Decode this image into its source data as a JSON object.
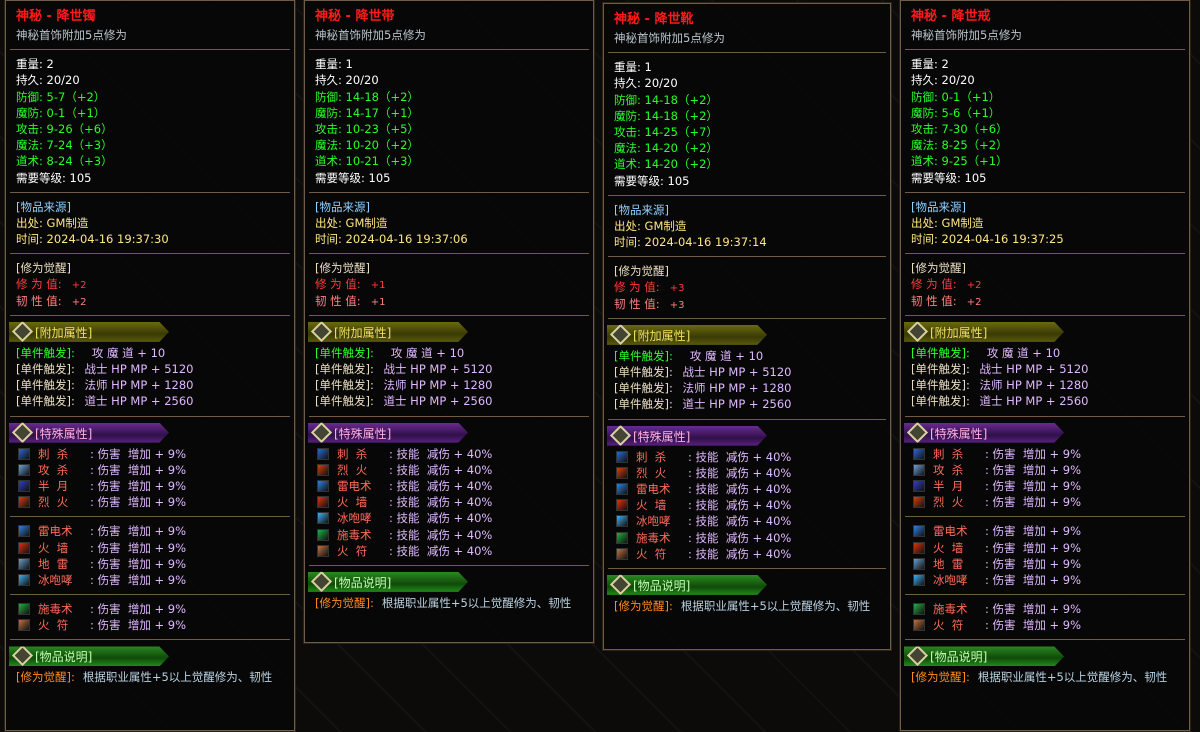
{
  "labels": {
    "weight": "重量",
    "durability": "持久",
    "defense": "防御",
    "mdefense": "魔防",
    "attack": "攻击",
    "magic": "魔法",
    "taoism": "道术",
    "level": "需要等级",
    "source_header": "[物品来源]",
    "origin": "出处",
    "time": "时间",
    "awaken_header": "[修为觉醒]",
    "cultivation": "修 为 值:",
    "toughness": "韧 性 值:",
    "extra_header": "[附加属性]",
    "special_header": "[特殊属性]",
    "desc_header": "[物品说明]",
    "desc_key": "[修为觉醒]:",
    "desc_text": "根据职业属性+5以上觉醒修为、韧性"
  },
  "triggers": [
    {
      "key": "[单件触发]:",
      "val": "   攻 魔 道 + 10",
      "highlight": true
    },
    {
      "key": "[单件触发]:",
      "val": " 战士 HP MP + 5120"
    },
    {
      "key": "[单件触发]:",
      "val": " 法师 HP MP + 1280"
    },
    {
      "key": "[单件触发]:",
      "val": " 道士 HP MP + 2560"
    }
  ],
  "skill_colors": {
    "刺  杀": "#2a6ad0",
    "攻  杀": "#6aa0e0",
    "半  月": "#3040c0",
    "烈  火": "#d04010",
    "雷电术": "#3080e0",
    "火  墙": "#e03010",
    "地  雷": "#60a0d0",
    "冰咆哮": "#40b0f0",
    "施毒术": "#20b040",
    "火  符": "#c07040"
  },
  "panels": [
    {
      "title": "神秘 - 降世镯",
      "subtitle": "神秘首饰附加5点修为",
      "weight": "2",
      "durability": "20/20",
      "defense": "5-7（+2）",
      "mdefense": "0-1（+1）",
      "attack": "9-26（+6）",
      "magic": "7-24（+3）",
      "taoism": "8-24（+3）",
      "level": "105",
      "origin": "GM制造",
      "time": "2024-04-16 19:37:30",
      "cultivation": "+2",
      "toughness": "+2",
      "skills": [
        [
          {
            "n": "刺  杀",
            "e": "伤害  增加 + 9%"
          },
          {
            "n": "攻  杀",
            "e": "伤害  增加 + 9%"
          },
          {
            "n": "半  月",
            "e": "伤害  增加 + 9%"
          },
          {
            "n": "烈  火",
            "e": "伤害  增加 + 9%"
          }
        ],
        [
          {
            "n": "雷电术",
            "e": "伤害  增加 + 9%"
          },
          {
            "n": "火  墙",
            "e": "伤害  增加 + 9%"
          },
          {
            "n": "地  雷",
            "e": "伤害  增加 + 9%"
          },
          {
            "n": "冰咆哮",
            "e": "伤害  增加 + 9%"
          }
        ],
        [
          {
            "n": "施毒术",
            "e": "伤害  增加 + 9%"
          },
          {
            "n": "火  符",
            "e": "伤害  增加 + 9%"
          }
        ]
      ]
    },
    {
      "title": "神秘 - 降世带",
      "subtitle": "神秘首饰附加5点修为",
      "weight": "1",
      "durability": "20/20",
      "defense": "14-18（+2）",
      "mdefense": "14-17（+1）",
      "attack": "10-23（+5）",
      "magic": "10-20（+2）",
      "taoism": "10-21（+3）",
      "level": "105",
      "origin": "GM制造",
      "time": "2024-04-16 19:37:06",
      "cultivation": "+1",
      "toughness": "+1",
      "skills": [
        [
          {
            "n": "刺  杀",
            "e": "技能  减伤 + 40%"
          },
          {
            "n": "烈  火",
            "e": "技能  减伤 + 40%"
          },
          {
            "n": "雷电术",
            "e": "技能  减伤 + 40%"
          },
          {
            "n": "火  墙",
            "e": "技能  减伤 + 40%"
          },
          {
            "n": "冰咆哮",
            "e": "技能  减伤 + 40%"
          },
          {
            "n": "施毒术",
            "e": "技能  减伤 + 40%"
          },
          {
            "n": "火  符",
            "e": "技能  减伤 + 40%"
          }
        ]
      ]
    },
    {
      "title": "神秘 - 降世靴",
      "subtitle": "神秘首饰附加5点修为",
      "weight": "1",
      "durability": "20/20",
      "defense": "14-18（+2）",
      "mdefense": "14-18（+2）",
      "attack": "14-25（+7）",
      "magic": "14-20（+2）",
      "taoism": "14-20（+2）",
      "level": "105",
      "origin": "GM制造",
      "time": "2024-04-16 19:37:14",
      "cultivation": "+3",
      "toughness": "+3",
      "skills": [
        [
          {
            "n": "刺  杀",
            "e": "技能  减伤 + 40%"
          },
          {
            "n": "烈  火",
            "e": "技能  减伤 + 40%"
          },
          {
            "n": "雷电术",
            "e": "技能  减伤 + 40%"
          },
          {
            "n": "火  墙",
            "e": "技能  减伤 + 40%"
          },
          {
            "n": "冰咆哮",
            "e": "技能  减伤 + 40%"
          },
          {
            "n": "施毒术",
            "e": "技能  减伤 + 40%"
          },
          {
            "n": "火  符",
            "e": "技能  减伤 + 40%"
          }
        ]
      ]
    },
    {
      "title": "神秘 - 降世戒",
      "subtitle": "神秘首饰附加5点修为",
      "weight": "2",
      "durability": "20/20",
      "defense": "0-1（+1）",
      "mdefense": "5-6（+1）",
      "attack": "7-30（+6）",
      "magic": "8-25（+2）",
      "taoism": "9-25（+1）",
      "level": "105",
      "origin": "GM制造",
      "time": "2024-04-16 19:37:25",
      "cultivation": "+2",
      "toughness": "+2",
      "skills": [
        [
          {
            "n": "刺  杀",
            "e": "伤害  增加 + 9%"
          },
          {
            "n": "攻  杀",
            "e": "伤害  增加 + 9%"
          },
          {
            "n": "半  月",
            "e": "伤害  增加 + 9%"
          },
          {
            "n": "烈  火",
            "e": "伤害  增加 + 9%"
          }
        ],
        [
          {
            "n": "雷电术",
            "e": "伤害  增加 + 9%"
          },
          {
            "n": "火  墙",
            "e": "伤害  增加 + 9%"
          },
          {
            "n": "地  雷",
            "e": "伤害  增加 + 9%"
          },
          {
            "n": "冰咆哮",
            "e": "伤害  增加 + 9%"
          }
        ],
        [
          {
            "n": "施毒术",
            "e": "伤害  增加 + 9%"
          },
          {
            "n": "火  符",
            "e": "伤害  增加 + 9%"
          }
        ]
      ]
    }
  ]
}
